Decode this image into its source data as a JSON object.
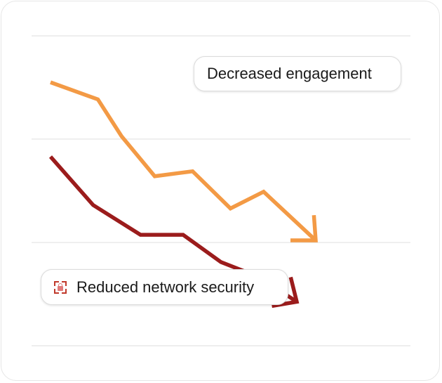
{
  "chart_data": {
    "type": "line",
    "title": "",
    "xlabel": "",
    "ylabel": "",
    "x": [
      1,
      2,
      3,
      4,
      5,
      6,
      7,
      8
    ],
    "xlim": [
      0.6,
      8.6
    ],
    "ylim": [
      0,
      100
    ],
    "grid": true,
    "gridlines": [
      0,
      33.3,
      66.7,
      100
    ],
    "series": [
      {
        "name": "Decreased engagement",
        "color": "#f39a45",
        "x": [
          1,
          2,
          2.5,
          3.2,
          4,
          4.8,
          5.5,
          6.6
        ],
        "values": [
          85,
          79.5,
          67.6,
          54.7,
          56.3,
          44.3,
          49.7,
          34
        ]
      },
      {
        "name": "Reduced network security",
        "color": "#9b1c1c",
        "x": [
          1,
          1.9,
          2.9,
          3.8,
          4.6,
          5.4,
          6.2
        ],
        "values": [
          61,
          45.4,
          35.8,
          35.8,
          27,
          22.2,
          14.2
        ]
      }
    ],
    "annotations": [
      {
        "text": "Decreased engagement",
        "icon": ""
      },
      {
        "text": "Reduced network security",
        "icon": "lock-icon"
      }
    ]
  }
}
